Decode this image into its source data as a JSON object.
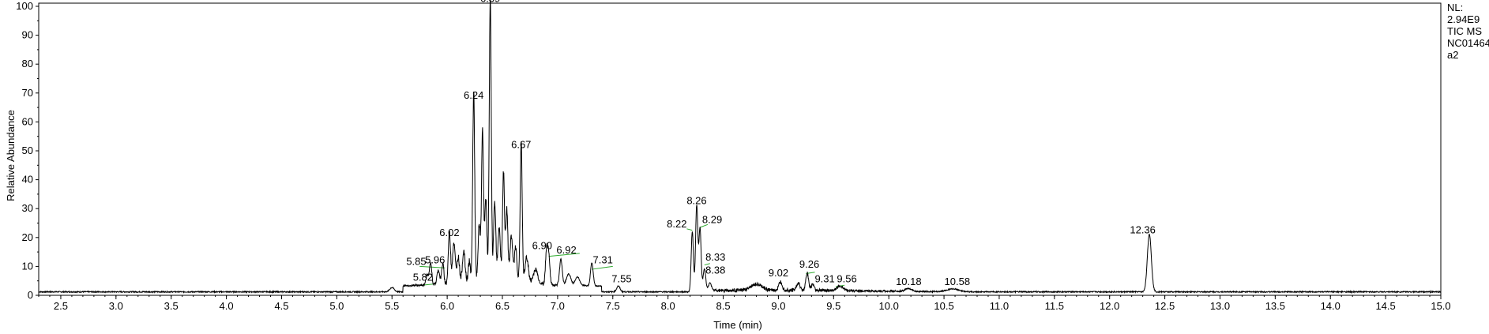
{
  "info": {
    "nl_label": "NL:",
    "nl_value": "2.94E9",
    "trace": "TIC  MS",
    "sample": "NC01464",
    "file_suffix": "a2"
  },
  "chart_data": {
    "type": "line",
    "title": "",
    "xlabel": "Time (min)",
    "ylabel": "Relative Abundance",
    "xlim": [
      2.3,
      15.0
    ],
    "ylim": [
      0,
      100
    ],
    "xticks": [
      "2.5",
      "3.0",
      "3.5",
      "4.0",
      "4.5",
      "5.0",
      "5.5",
      "6.0",
      "6.5",
      "7.0",
      "7.5",
      "8.0",
      "8.5",
      "9.0",
      "9.5",
      "10.0",
      "10.5",
      "11.0",
      "11.5",
      "12.0",
      "12.5",
      "13.0",
      "13.5",
      "14.0",
      "14.5",
      "15.0"
    ],
    "yticks": [
      "0",
      "10",
      "20",
      "30",
      "40",
      "50",
      "60",
      "70",
      "80",
      "90",
      "100"
    ],
    "baseline": 1.0,
    "peaks": [
      {
        "rt": 5.5,
        "height": 1.5,
        "width": 0.02
      },
      {
        "rt": 5.82,
        "height": 3.5,
        "width": 0.012
      },
      {
        "rt": 5.85,
        "height": 7.5,
        "width": 0.01
      },
      {
        "rt": 5.92,
        "height": 5,
        "width": 0.012
      },
      {
        "rt": 5.96,
        "height": 7,
        "width": 0.01
      },
      {
        "rt": 6.02,
        "height": 18,
        "width": 0.01
      },
      {
        "rt": 6.06,
        "height": 14,
        "width": 0.012
      },
      {
        "rt": 6.1,
        "height": 9,
        "width": 0.012
      },
      {
        "rt": 6.15,
        "height": 11,
        "width": 0.012
      },
      {
        "rt": 6.2,
        "height": 7,
        "width": 0.01
      },
      {
        "rt": 6.24,
        "height": 66,
        "width": 0.009
      },
      {
        "rt": 6.29,
        "height": 20,
        "width": 0.01
      },
      {
        "rt": 6.32,
        "height": 53,
        "width": 0.009
      },
      {
        "rt": 6.35,
        "height": 28,
        "width": 0.01
      },
      {
        "rt": 6.39,
        "height": 99,
        "width": 0.009
      },
      {
        "rt": 6.43,
        "height": 28,
        "width": 0.01
      },
      {
        "rt": 6.47,
        "height": 18,
        "width": 0.012
      },
      {
        "rt": 6.51,
        "height": 38,
        "width": 0.009
      },
      {
        "rt": 6.54,
        "height": 25,
        "width": 0.01
      },
      {
        "rt": 6.58,
        "height": 16,
        "width": 0.012
      },
      {
        "rt": 6.62,
        "height": 12,
        "width": 0.012
      },
      {
        "rt": 6.67,
        "height": 49,
        "width": 0.009
      },
      {
        "rt": 6.72,
        "height": 9,
        "width": 0.015
      },
      {
        "rt": 6.8,
        "height": 5,
        "width": 0.02
      },
      {
        "rt": 6.9,
        "height": 12,
        "width": 0.01
      },
      {
        "rt": 6.92,
        "height": 10,
        "width": 0.01
      },
      {
        "rt": 7.03,
        "height": 9,
        "width": 0.012
      },
      {
        "rt": 7.1,
        "height": 4,
        "width": 0.02
      },
      {
        "rt": 7.18,
        "height": 3,
        "width": 0.02
      },
      {
        "rt": 7.31,
        "height": 8,
        "width": 0.012
      },
      {
        "rt": 7.55,
        "height": 2,
        "width": 0.015
      },
      {
        "rt": 8.22,
        "height": 21,
        "width": 0.01
      },
      {
        "rt": 8.26,
        "height": 30,
        "width": 0.01
      },
      {
        "rt": 8.29,
        "height": 22,
        "width": 0.01
      },
      {
        "rt": 8.33,
        "height": 8,
        "width": 0.012
      },
      {
        "rt": 8.38,
        "height": 3,
        "width": 0.015
      },
      {
        "rt": 8.8,
        "height": 2,
        "width": 0.05
      },
      {
        "rt": 9.02,
        "height": 3,
        "width": 0.015
      },
      {
        "rt": 9.18,
        "height": 2.5,
        "width": 0.015
      },
      {
        "rt": 9.26,
        "height": 6,
        "width": 0.012
      },
      {
        "rt": 9.31,
        "height": 2,
        "width": 0.015
      },
      {
        "rt": 9.56,
        "height": 1.5,
        "width": 0.03
      },
      {
        "rt": 10.18,
        "height": 1,
        "width": 0.03
      },
      {
        "rt": 10.58,
        "height": 1,
        "width": 0.05
      },
      {
        "rt": 12.36,
        "height": 20,
        "width": 0.018
      }
    ],
    "labels": [
      {
        "text": "6.39",
        "rt": 6.39,
        "y": 101.5
      },
      {
        "text": "6.24",
        "rt": 6.24,
        "y": 68
      },
      {
        "text": "6.67",
        "rt": 6.67,
        "y": 51
      },
      {
        "text": "6.02",
        "rt": 6.02,
        "y": 20.5
      },
      {
        "text": "5.85",
        "rt": 5.72,
        "y": 10.5
      },
      {
        "text": "5.96",
        "rt": 5.89,
        "y": 11
      },
      {
        "text": "5.82",
        "rt": 5.78,
        "y": 5
      },
      {
        "text": "6.90",
        "rt": 6.86,
        "y": 16
      },
      {
        "text": "6.92",
        "rt": 7.08,
        "y": 14.5
      },
      {
        "text": "7.31",
        "rt": 7.41,
        "y": 11
      },
      {
        "text": "7.55",
        "rt": 7.58,
        "y": 4.5
      },
      {
        "text": "8.26",
        "rt": 8.26,
        "y": 31.5
      },
      {
        "text": "8.22",
        "rt": 8.08,
        "y": 23.5
      },
      {
        "text": "8.29",
        "rt": 8.4,
        "y": 25
      },
      {
        "text": "8.33",
        "rt": 8.43,
        "y": 12
      },
      {
        "text": "8.38",
        "rt": 8.43,
        "y": 7.5
      },
      {
        "text": "9.02",
        "rt": 9.0,
        "y": 6.5
      },
      {
        "text": "9.26",
        "rt": 9.28,
        "y": 9.5
      },
      {
        "text": "9.31",
        "rt": 9.42,
        "y": 4.5
      },
      {
        "text": "9.56",
        "rt": 9.62,
        "y": 4.5
      },
      {
        "text": "10.18",
        "rt": 10.18,
        "y": 3.5
      },
      {
        "text": "10.58",
        "rt": 10.62,
        "y": 3.5
      },
      {
        "text": "12.36",
        "rt": 12.3,
        "y": 21.5
      }
    ],
    "green_segments": [
      {
        "from": [
          5.75,
          10.0
        ],
        "to": [
          5.98,
          9.5
        ]
      },
      {
        "from": [
          5.77,
          3.5
        ],
        "to": [
          5.9,
          4.0
        ]
      },
      {
        "from": [
          6.92,
          13.5
        ],
        "to": [
          7.2,
          14.5
        ]
      },
      {
        "from": [
          7.31,
          9.0
        ],
        "to": [
          7.5,
          10.0
        ]
      },
      {
        "from": [
          8.17,
          23.0
        ],
        "to": [
          8.22,
          22.5
        ]
      },
      {
        "from": [
          8.29,
          23.5
        ],
        "to": [
          8.36,
          24.5
        ]
      },
      {
        "from": [
          8.33,
          10.5
        ],
        "to": [
          8.38,
          11.0
        ]
      },
      {
        "from": [
          9.25,
          7.5
        ],
        "to": [
          9.33,
          8.0
        ]
      },
      {
        "from": [
          9.52,
          3.0
        ],
        "to": [
          9.6,
          3.5
        ]
      }
    ],
    "colors": {
      "trace": "#000000",
      "annotation_line": "#2eaa2e",
      "axis": "#000000",
      "background": "#ffffff"
    }
  }
}
